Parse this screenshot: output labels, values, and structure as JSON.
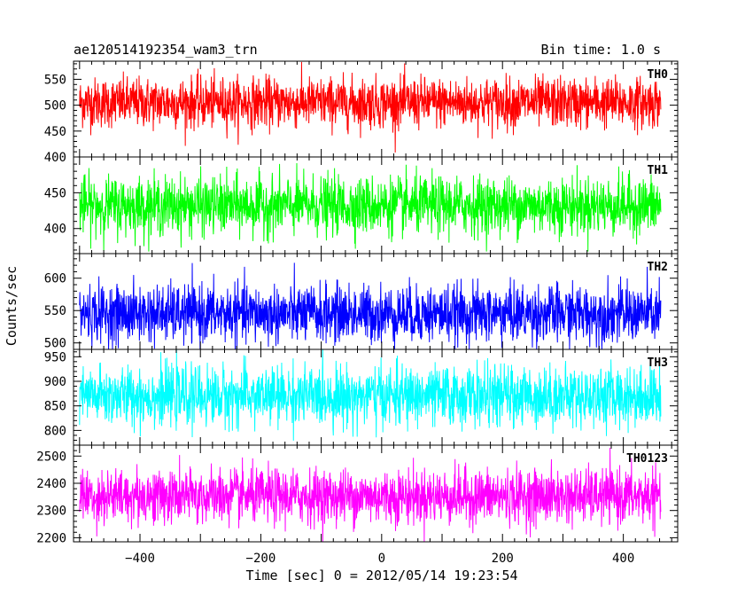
{
  "chart_data": {
    "type": "line",
    "title": "ae120514192354_wam3_trn",
    "subtitle": "Bin time: 1.0 s",
    "xlabel": "Time [sec] 0 = 2012/05/14 19:23:54",
    "ylabel": "Counts/sec",
    "xlim": [
      -510,
      490
    ],
    "x_ticks": [
      -400,
      -200,
      0,
      200,
      400
    ],
    "x_tick_labels": [
      "−400",
      "−200",
      "0",
      "200",
      "400"
    ],
    "series_x_range": [
      -500,
      462
    ],
    "bin_time_s": 1.0,
    "grid": false,
    "panels": [
      {
        "name": "TH0",
        "color": "#ff0000",
        "ylim": [
          400,
          585
        ],
        "y_ticks": [
          400,
          450,
          500,
          550
        ],
        "y_tick_labels": [
          "400",
          "450",
          "500",
          "550"
        ],
        "mean": 505,
        "sd": 24,
        "min": 405,
        "max": 590
      },
      {
        "name": "TH1",
        "color": "#00ff00",
        "ylim": [
          365,
          500
        ],
        "y_ticks": [
          400,
          450
        ],
        "y_tick_labels": [
          "400",
          "450"
        ],
        "mean": 432,
        "sd": 20,
        "min": 368,
        "max": 500
      },
      {
        "name": "TH2",
        "color": "#0000ff",
        "ylim": [
          490,
          638
        ],
        "y_ticks": [
          500,
          550,
          600
        ],
        "y_tick_labels": [
          "500",
          "550",
          "600"
        ],
        "mean": 545,
        "sd": 22,
        "min": 490,
        "max": 640
      },
      {
        "name": "TH3",
        "color": "#00ffff",
        "ylim": [
          770,
          965
        ],
        "y_ticks": [
          800,
          850,
          900,
          950
        ],
        "y_tick_labels": [
          "800",
          "850",
          "900",
          "950"
        ],
        "mean": 870,
        "sd": 30,
        "min": 770,
        "max": 965
      },
      {
        "name": "TH0123",
        "color": "#ff00ff",
        "ylim": [
          2185,
          2540
        ],
        "y_ticks": [
          2200,
          2300,
          2400,
          2500
        ],
        "y_tick_labels": [
          "2200",
          "2300",
          "2400",
          "2500"
        ],
        "mean": 2352,
        "sd": 50,
        "min": 2185,
        "max": 2540
      }
    ]
  }
}
